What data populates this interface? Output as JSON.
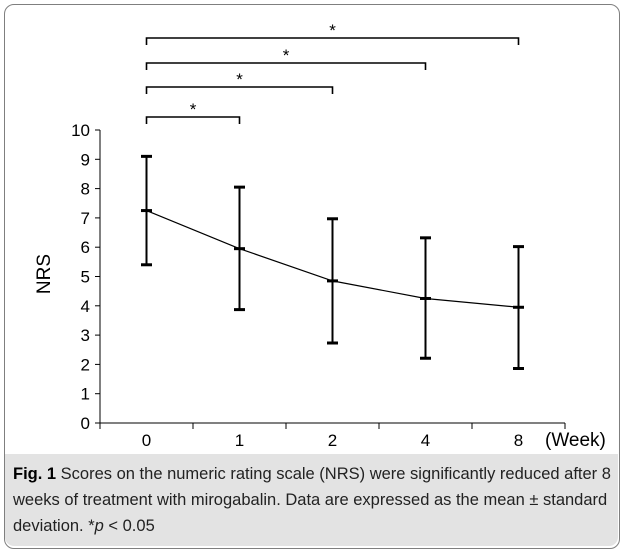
{
  "chart_data": {
    "type": "line",
    "categories": [
      "0",
      "1",
      "2",
      "4",
      "8"
    ],
    "x_unit_label": "(Week)",
    "ylabel": "NRS",
    "ylim": [
      0,
      10
    ],
    "yticks": [
      "0",
      "1",
      "2",
      "3",
      "4",
      "5",
      "6",
      "7",
      "8",
      "9",
      "10"
    ],
    "series": [
      {
        "values": [
          7.25,
          5.95,
          4.85,
          4.25,
          3.95
        ],
        "error_upper": [
          9.1,
          8.05,
          6.97,
          6.32,
          6.02
        ],
        "error_lower": [
          5.4,
          3.87,
          2.73,
          2.21,
          1.86
        ]
      }
    ],
    "significance_brackets": [
      {
        "from": "0",
        "to": "1",
        "label": "*"
      },
      {
        "from": "0",
        "to": "2",
        "label": "*"
      },
      {
        "from": "0",
        "to": "4",
        "label": "*"
      },
      {
        "from": "0",
        "to": "8",
        "label": "*"
      }
    ],
    "grid": false,
    "colors": {
      "line": "#000000",
      "caption_background": "#e3e3e3",
      "border": "#7f7f7f"
    }
  },
  "caption": {
    "figure_label": "Fig. 1",
    "text": " Scores on the numeric rating scale (NRS) were significantly reduced after 8 weeks of treatment with mirogabalin. Data are expressed as the mean ± standard deviation. *",
    "p_symbol": "p",
    "p_text": " < 0.05"
  }
}
